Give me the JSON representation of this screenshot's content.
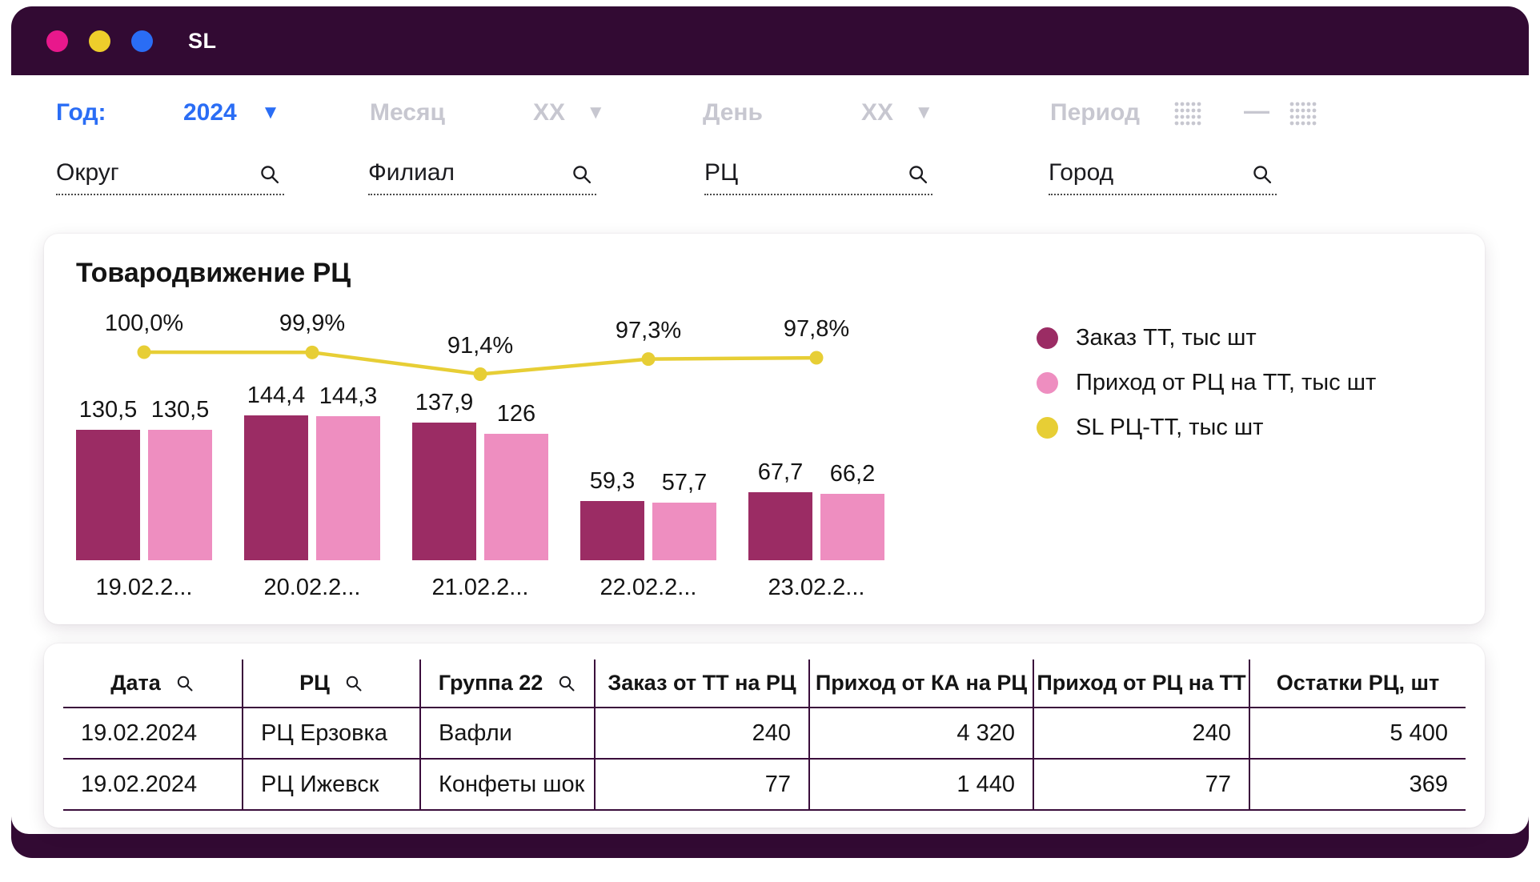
{
  "window": {
    "title": "SL",
    "traffic_lights": {
      "close": "#e8188c",
      "minimize": "#eecd2b",
      "maximize": "#2a6df5"
    }
  },
  "filters": {
    "year_label": "Год:",
    "year_value": "2024",
    "month_label": "Месяц",
    "month_value": "XX",
    "day_label": "День",
    "day_value": "XX",
    "period_label": "Период",
    "search_fields": [
      {
        "placeholder": "Округ"
      },
      {
        "placeholder": "Филиал"
      },
      {
        "placeholder": "РЦ"
      },
      {
        "placeholder": "Город"
      }
    ]
  },
  "chart_card": {
    "title": "Товародвижение РЦ"
  },
  "chart_data": {
    "type": "combo-bar-line",
    "title": "Товародвижение РЦ",
    "categories": [
      "19.02.2...",
      "20.02.2...",
      "21.02.2...",
      "22.02.2...",
      "23.02.2..."
    ],
    "series": [
      {
        "name": "Заказ ТТ, тыс шт",
        "type": "bar",
        "color": "#9b2c64",
        "values": [
          130.5,
          144.4,
          137.9,
          59.3,
          67.7
        ],
        "labels": [
          "130,5",
          "144,4",
          "137,9",
          "59,3",
          "67,7"
        ]
      },
      {
        "name": "Приход от РЦ на ТТ, тыс шт",
        "type": "bar",
        "color": "#ee8ec0",
        "values": [
          130.5,
          144.3,
          126,
          57.7,
          66.2
        ],
        "labels": [
          "130,5",
          "144,3",
          "126",
          "57,7",
          "66,2"
        ]
      },
      {
        "name": "SL РЦ-ТТ, тыс шт",
        "type": "line",
        "color": "#e7ce35",
        "values": [
          100.0,
          99.9,
          91.4,
          97.3,
          97.8
        ],
        "labels": [
          "100,0%",
          "99,9%",
          "91,4%",
          "97,3%",
          "97,8%"
        ]
      }
    ],
    "ylim": [
      0,
      160
    ],
    "legend_position": "right",
    "grid": false
  },
  "table": {
    "columns": [
      {
        "label": "Дата",
        "search": true,
        "align": "left"
      },
      {
        "label": "РЦ",
        "search": true,
        "align": "left"
      },
      {
        "label": "Группа 22",
        "search": true,
        "align": "left"
      },
      {
        "label": "Заказ от ТТ на РЦ",
        "search": false,
        "align": "right"
      },
      {
        "label": "Приход от КА на РЦ",
        "search": false,
        "align": "right"
      },
      {
        "label": "Приход от РЦ на ТТ",
        "search": false,
        "align": "right"
      },
      {
        "label": "Остатки РЦ, шт",
        "search": false,
        "align": "right"
      }
    ],
    "rows": [
      [
        "19.02.2024",
        "РЦ Ерзовка",
        "Вафли",
        "240",
        "4 320",
        "240",
        "5 400"
      ],
      [
        "19.02.2024",
        "РЦ Ижевск",
        "Конфеты шок",
        "77",
        "1 440",
        "77",
        "369"
      ]
    ]
  },
  "colors": {
    "window_frame": "#320a33",
    "accent_blue": "#2a6df5",
    "disabled_gray": "#c7c7d0",
    "bar_dark": "#9b2c64",
    "bar_pink": "#ee8ec0",
    "line_yellow": "#e7ce35",
    "table_border": "#3a0d3b"
  }
}
